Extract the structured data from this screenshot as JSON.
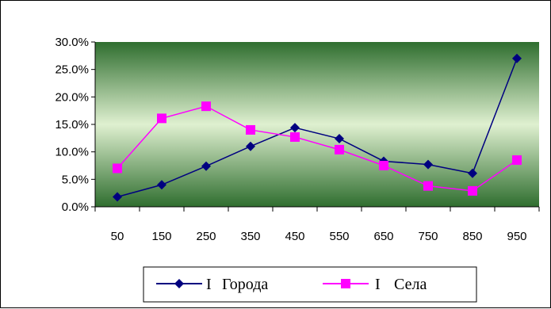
{
  "chart_data": {
    "type": "line",
    "categories": [
      "50",
      "150",
      "250",
      "350",
      "450",
      "550",
      "650",
      "750",
      "850",
      "950"
    ],
    "series": [
      {
        "name": "Города",
        "values": [
          1.8,
          4.0,
          7.4,
          11.0,
          14.4,
          12.4,
          8.3,
          7.7,
          6.1,
          27.0
        ],
        "color": "#000080",
        "marker": "diamond"
      },
      {
        "name": "Села",
        "values": [
          7.0,
          16.1,
          18.3,
          14.0,
          12.7,
          10.4,
          7.5,
          3.8,
          2.9,
          8.5
        ],
        "color": "#ff00ff",
        "marker": "square"
      }
    ],
    "y_ticks": [
      "0.0%",
      "5.0%",
      "10.0%",
      "15.0%",
      "20.0%",
      "25.0%",
      "30.0%"
    ],
    "ylim": [
      0,
      30
    ],
    "grid": false,
    "legend_placement": "bottom-right",
    "plot_background": "green-gradient"
  },
  "legend": {
    "items": [
      {
        "label": "Города",
        "marker_text": "I"
      },
      {
        "label": "Села",
        "marker_text": "I"
      }
    ]
  }
}
